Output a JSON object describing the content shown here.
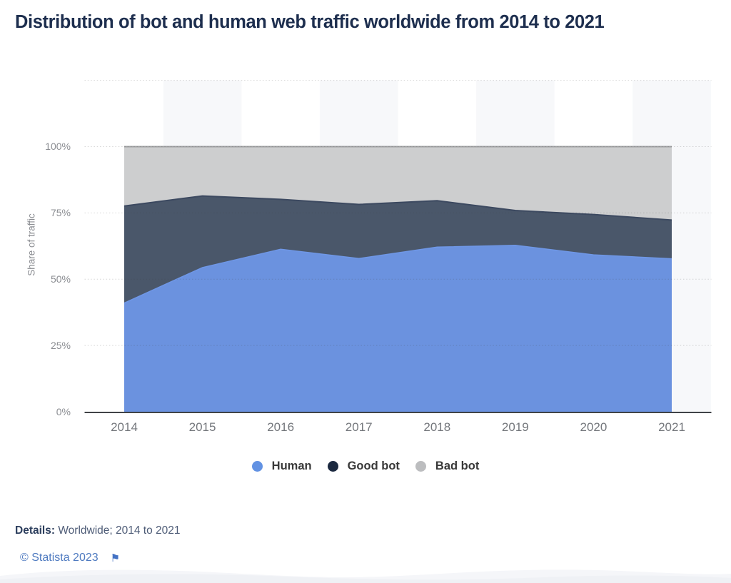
{
  "title": "Distribution of bot and human web traffic worldwide from 2014 to 2021",
  "chart_data": {
    "type": "area",
    "stacked": true,
    "title": "Distribution of bot and human web traffic worldwide from 2014 to 2021",
    "x": [
      2014,
      2015,
      2016,
      2017,
      2018,
      2019,
      2020,
      2021
    ],
    "categories": [
      "2014",
      "2015",
      "2016",
      "2017",
      "2018",
      "2019",
      "2020",
      "2021"
    ],
    "series": [
      {
        "name": "Human",
        "color": "#6292e3",
        "fill": "#6b92df",
        "values": [
          41.0,
          54.4,
          61.3,
          57.8,
          62.1,
          62.8,
          59.2,
          57.7
        ]
      },
      {
        "name": "Good bot",
        "color": "#1b2940",
        "fill": "#4a576a",
        "values": [
          36.6,
          27.0,
          18.8,
          20.4,
          17.5,
          13.1,
          15.2,
          14.6
        ]
      },
      {
        "name": "Bad bot",
        "color": "#bcbdbf",
        "fill": "#cdcecf",
        "values": [
          22.4,
          18.6,
          19.9,
          21.8,
          20.4,
          24.1,
          25.6,
          27.7
        ]
      }
    ],
    "ylabel": "Share of traffic",
    "xlabel": "",
    "ylim": [
      0,
      100
    ],
    "yticks": [
      0,
      25,
      50,
      75,
      100
    ],
    "ytick_labels": [
      "0%",
      "25%",
      "50%",
      "75%",
      "100%"
    ],
    "grid": "dotted-horizontal",
    "legend_position": "bottom",
    "plot_band_color": "#f7f8fa"
  },
  "details": {
    "label": "Details:",
    "value": "Worldwide; 2014 to 2021"
  },
  "footer": {
    "copyright": "© Statista 2023",
    "flag_icon": "flag"
  }
}
